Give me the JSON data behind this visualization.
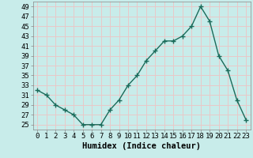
{
  "title": "",
  "xlabel": "Humidex (Indice chaleur)",
  "ylabel": "",
  "x": [
    0,
    1,
    2,
    3,
    4,
    5,
    6,
    7,
    8,
    9,
    10,
    11,
    12,
    13,
    14,
    15,
    16,
    17,
    18,
    19,
    20,
    21,
    22,
    23
  ],
  "y": [
    32,
    31,
    29,
    28,
    27,
    25,
    25,
    25,
    28,
    30,
    33,
    35,
    38,
    40,
    42,
    42,
    43,
    45,
    49,
    46,
    39,
    36,
    30,
    26
  ],
  "xlim": [
    -0.5,
    23.5
  ],
  "ylim": [
    24,
    50
  ],
  "yticks": [
    25,
    27,
    29,
    31,
    33,
    35,
    37,
    39,
    41,
    43,
    45,
    47,
    49
  ],
  "xticks": [
    0,
    1,
    2,
    3,
    4,
    5,
    6,
    7,
    8,
    9,
    10,
    11,
    12,
    13,
    14,
    15,
    16,
    17,
    18,
    19,
    20,
    21,
    22,
    23
  ],
  "line_color": "#1a6b5a",
  "marker": "+",
  "bg_color": "#c8ecea",
  "grid_color": "#e8c8c8",
  "tick_label_fontsize": 6.5,
  "xlabel_fontsize": 7.5
}
